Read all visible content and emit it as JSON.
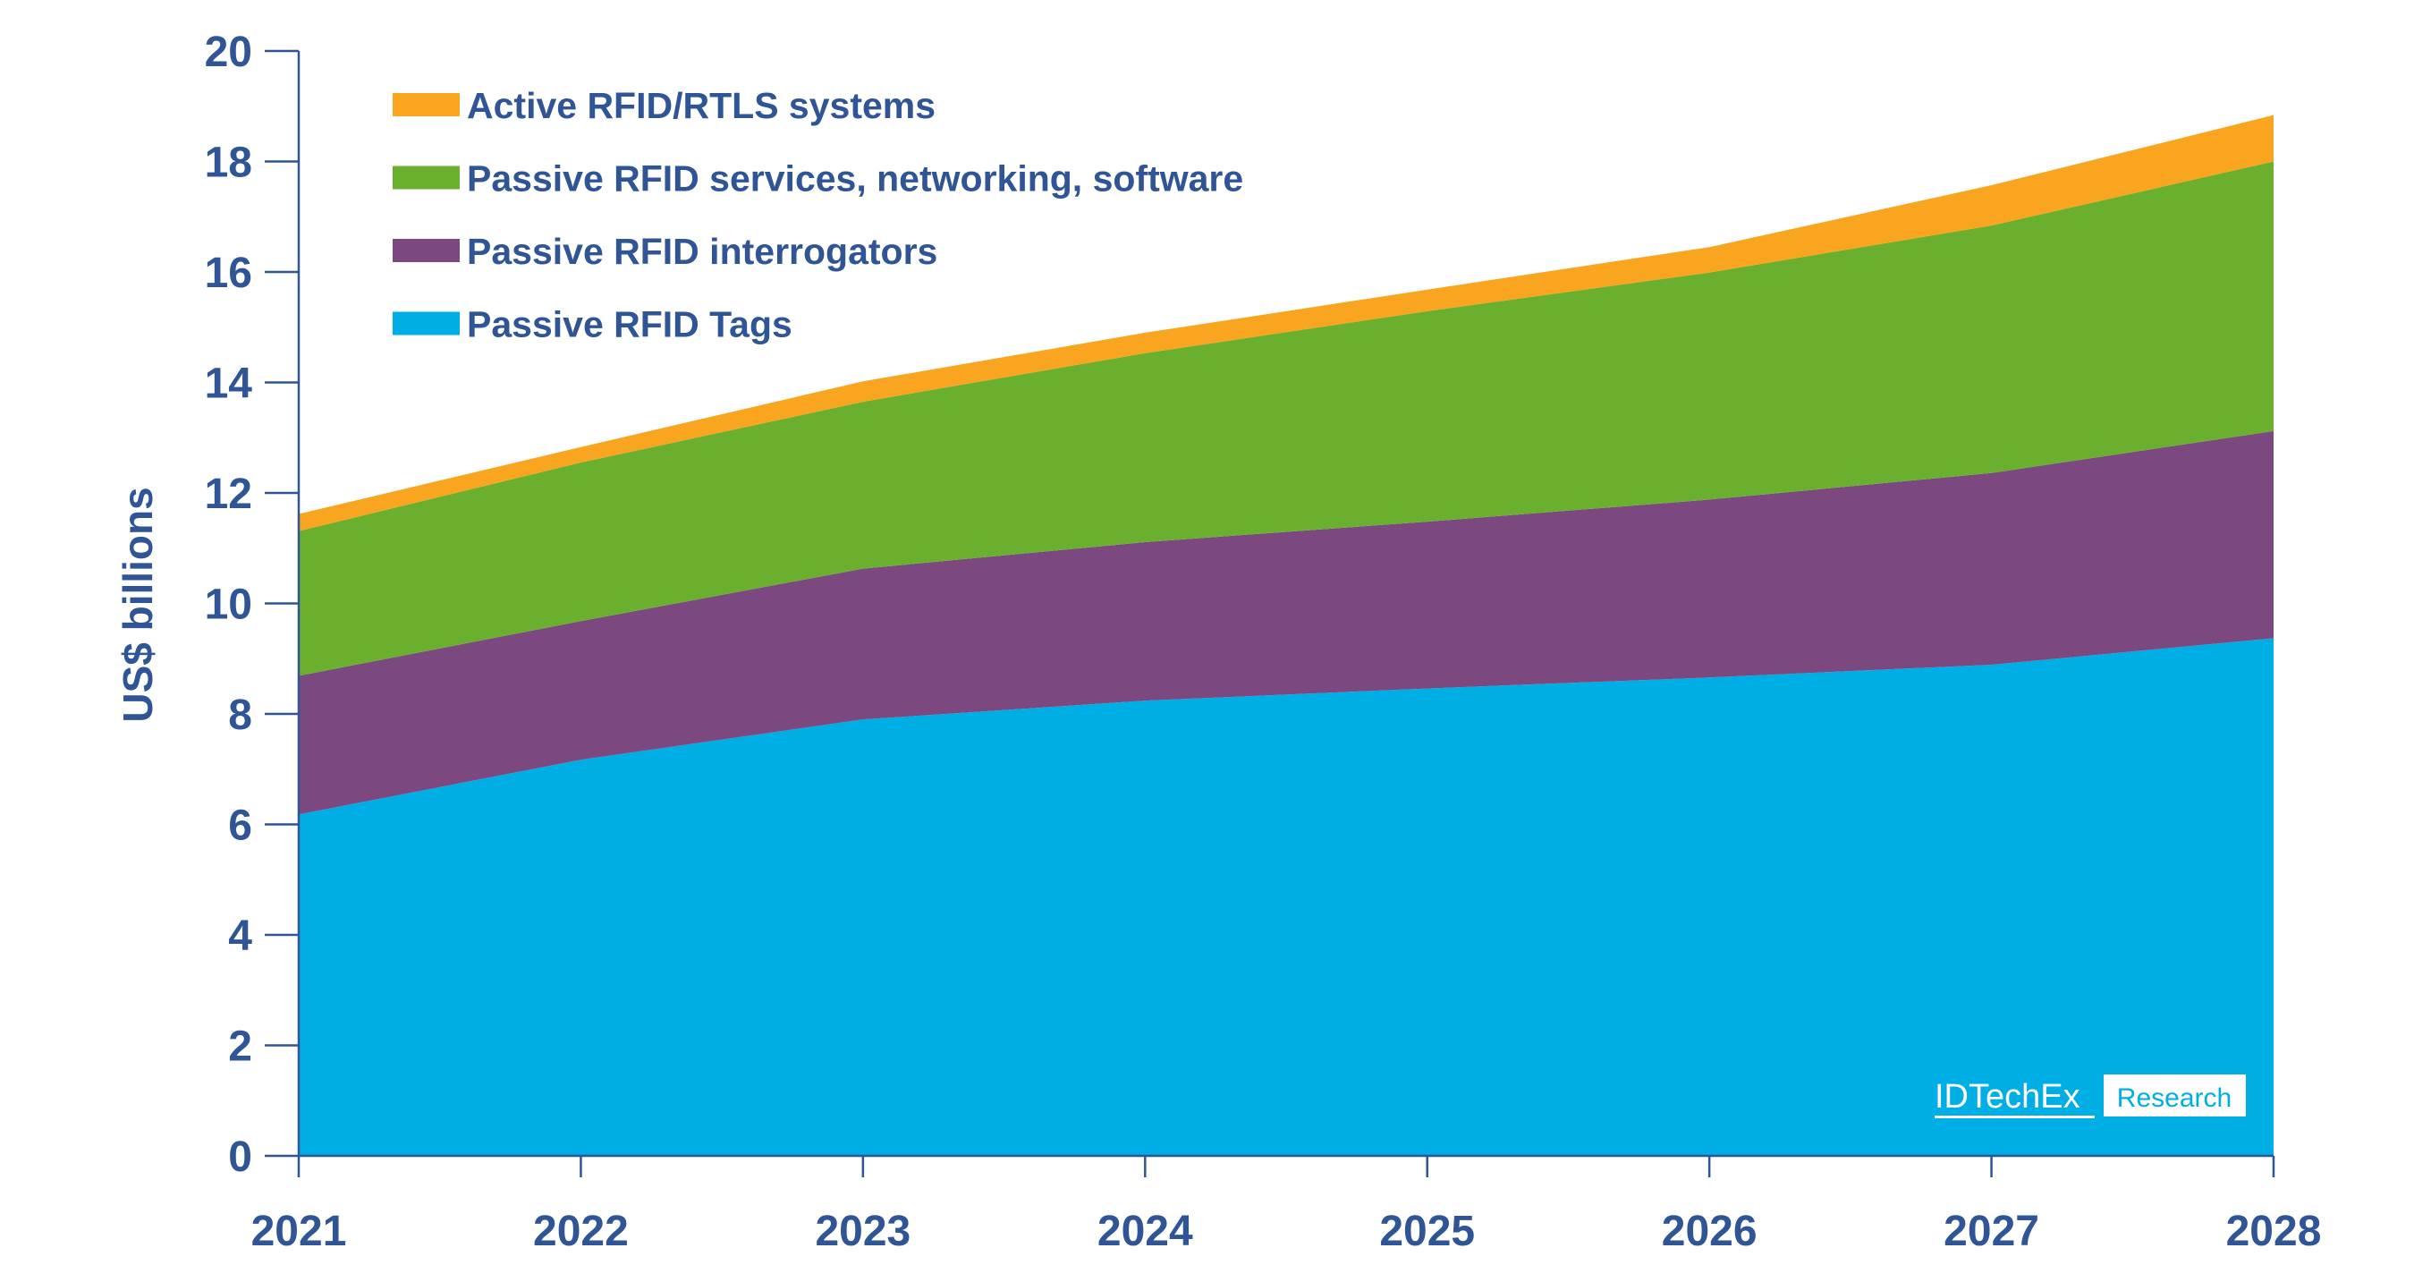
{
  "chart_data": {
    "type": "area",
    "stacked": true,
    "title": "",
    "xlabel": "",
    "ylabel": "US$ billions",
    "ylim": [
      0,
      20
    ],
    "yticks": [
      0,
      2,
      4,
      6,
      8,
      10,
      12,
      14,
      16,
      18,
      20
    ],
    "categories": [
      "2021",
      "2022",
      "2023",
      "2024",
      "2025",
      "2026",
      "2027",
      "2028"
    ],
    "grid": false,
    "legend_position": "top-left",
    "series": [
      {
        "name": "Passive RFID Tags",
        "color": "#00aee6",
        "values": [
          6.18,
          7.17,
          7.9,
          8.24,
          8.46,
          8.66,
          8.89,
          9.37
        ]
      },
      {
        "name": "Passive RFID interrogators",
        "color": "#7b4880",
        "values": [
          2.51,
          2.51,
          2.73,
          2.87,
          3.02,
          3.22,
          3.47,
          3.75
        ]
      },
      {
        "name": "Passive RFID services, networking, software",
        "color": "#6ab02e",
        "values": [
          2.62,
          2.87,
          3.02,
          3.42,
          3.81,
          4.11,
          4.48,
          4.88
        ]
      },
      {
        "name": "Active RFID/RTLS systems",
        "color": "#f9a51f",
        "values": [
          0.31,
          0.28,
          0.37,
          0.37,
          0.39,
          0.46,
          0.73,
          0.84
        ]
      }
    ],
    "legend_order": [
      3,
      2,
      1,
      0
    ],
    "axis_color": "#2f5597"
  },
  "logo": {
    "brand": "IDTechEx",
    "suffix": "Research"
  }
}
